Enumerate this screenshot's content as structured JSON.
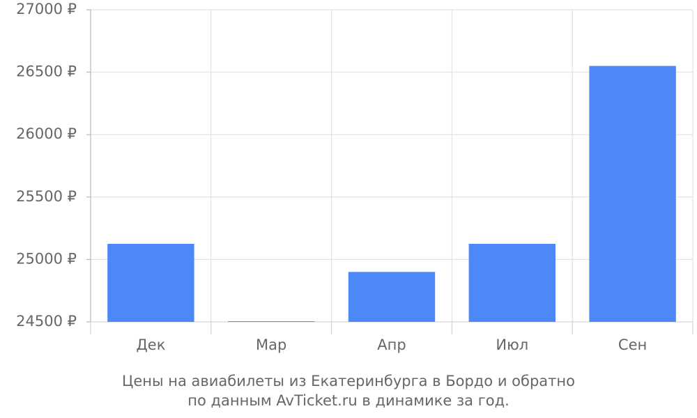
{
  "chart_data": {
    "type": "bar",
    "title": [
      "Цены на авиабилеты из Екатеринбурга в Бордо и обратно",
      "по данным AvTicket.ru в динамике за год."
    ],
    "categories": [
      "Дек",
      "Мар",
      "Апр",
      "Июл",
      "Сен"
    ],
    "values": [
      25125,
      24505,
      24900,
      25125,
      26550
    ],
    "color": "#4d88f9",
    "ylim": [
      24500,
      27000
    ],
    "yticks": [
      {
        "value": 24500,
        "label": "24500 ₽"
      },
      {
        "value": 25000,
        "label": "25000 ₽"
      },
      {
        "value": 25500,
        "label": "25500 ₽"
      },
      {
        "value": 26000,
        "label": "26000 ₽"
      },
      {
        "value": 26500,
        "label": "26500 ₽"
      },
      {
        "value": 27000,
        "label": "27000 ₽"
      }
    ],
    "grid": true
  }
}
